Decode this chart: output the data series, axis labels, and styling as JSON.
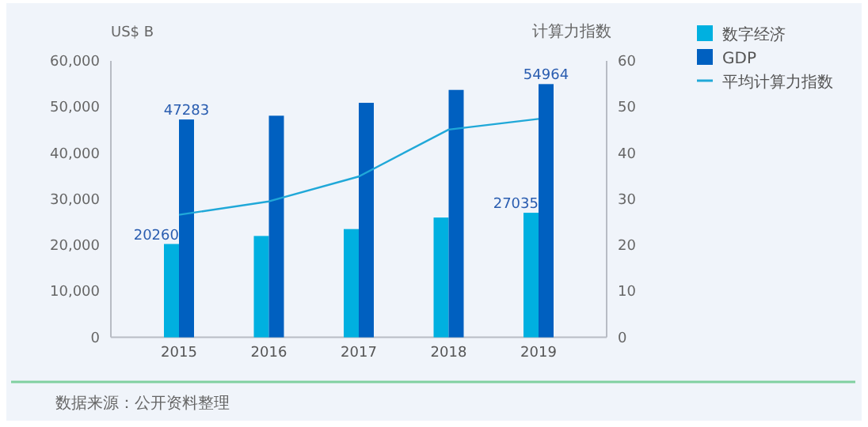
{
  "chart_data": {
    "type": "bar",
    "categories": [
      "2015",
      "2016",
      "2017",
      "2018",
      "2019"
    ],
    "ylabel": "US$ B",
    "y2label": "计算力指数",
    "ylim": [
      0,
      60000
    ],
    "yticks": [
      0,
      {
        "value": 10000,
        "label": "10,000"
      },
      {
        "value": 20000,
        "label": "20,000"
      },
      {
        "value": 30000,
        "label": "30,000"
      },
      {
        "value": 40000,
        "label": "40,000"
      },
      {
        "value": 50000,
        "label": "50,000"
      },
      {
        "value": 60000,
        "label": "60,000"
      }
    ],
    "y2lim": [
      0,
      60
    ],
    "y2ticks": [
      0,
      10,
      20,
      30,
      40,
      50,
      60
    ],
    "legend": "top right",
    "grid": false,
    "series": [
      {
        "name": "数字经济",
        "color": "#00b0e0",
        "values": [
          20260,
          22000,
          23500,
          26000,
          27035
        ],
        "value_labels": [
          "20260",
          null,
          null,
          null,
          "27035"
        ]
      },
      {
        "name": "GDP",
        "color": "#0060c0",
        "values": [
          47283,
          48100,
          50900,
          53700,
          54964
        ],
        "value_labels": [
          "47283",
          null,
          null,
          null,
          "54964"
        ]
      },
      {
        "name": "平均计算力指数",
        "type": "line",
        "axis": "y2",
        "color": "#20a8d8",
        "values": [
          26.6,
          29.5,
          34.9,
          45.1,
          47.4
        ]
      }
    ],
    "annotations": [
      "数据来源：公开资料整理"
    ]
  }
}
